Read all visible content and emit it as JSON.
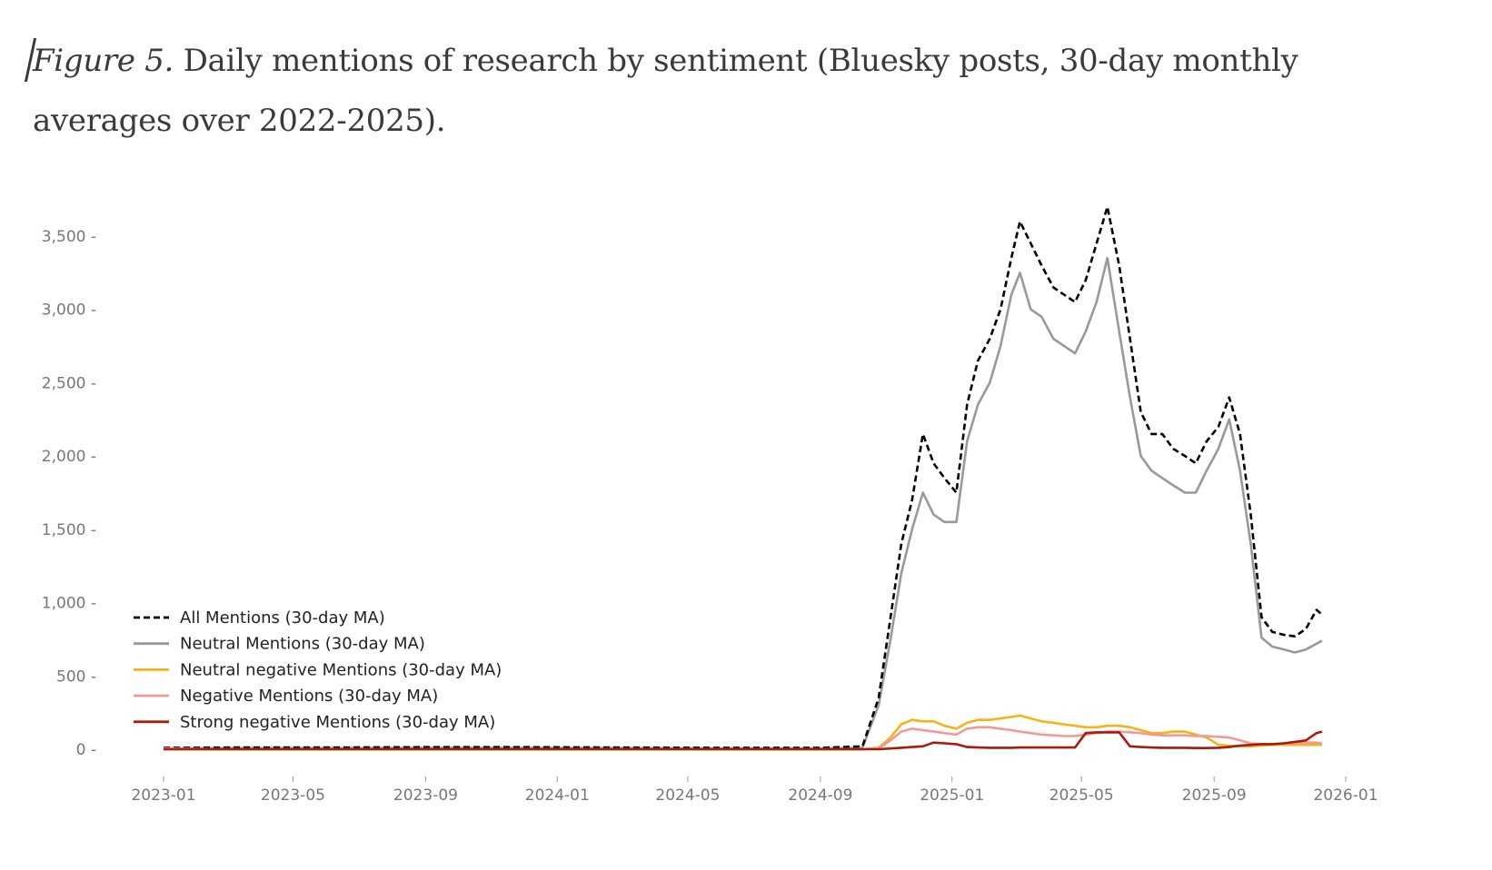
{
  "caption": {
    "figure_label": "Figure 5.",
    "text": " Daily mentions of research by sentiment (Bluesky posts, 30-day monthly averages over 2022-2025)."
  },
  "chart_data": {
    "type": "line",
    "title": "Daily mentions of research by sentiment (Bluesky posts, 30-day monthly averages over 2022-2025)",
    "xlabel": "",
    "ylabel": "",
    "xlim": [
      "2023-01",
      "2026-01"
    ],
    "ylim": [
      0,
      3700
    ],
    "grid": false,
    "legend_position": "lower-left",
    "x_ticks": [
      "2023-01",
      "2023-05",
      "2023-09",
      "2024-01",
      "2024-05",
      "2024-09",
      "2025-01",
      "2025-05",
      "2025-09",
      "2026-01"
    ],
    "y_ticks": [
      0,
      500,
      1000,
      1500,
      2000,
      2500,
      3000,
      3500
    ],
    "y_tick_labels": [
      "0",
      "500",
      "1,000",
      "1,500",
      "2,000",
      "2,500",
      "3,000",
      "3,500"
    ],
    "x": [
      "2023-01-01",
      "2023-03-01",
      "2023-06-01",
      "2023-09-01",
      "2023-12-01",
      "2024-03-01",
      "2024-06-01",
      "2024-09-01",
      "2024-10-10",
      "2024-10-25",
      "2024-11-05",
      "2024-11-15",
      "2024-11-25",
      "2024-12-05",
      "2024-12-15",
      "2024-12-25",
      "2025-01-05",
      "2025-01-15",
      "2025-01-25",
      "2025-02-05",
      "2025-02-15",
      "2025-02-25",
      "2025-03-05",
      "2025-03-15",
      "2025-03-25",
      "2025-04-05",
      "2025-04-15",
      "2025-04-25",
      "2025-05-05",
      "2025-05-15",
      "2025-05-25",
      "2025-06-05",
      "2025-06-15",
      "2025-06-25",
      "2025-07-05",
      "2025-07-15",
      "2025-07-25",
      "2025-08-05",
      "2025-08-15",
      "2025-08-25",
      "2025-09-05",
      "2025-09-15",
      "2025-09-25",
      "2025-10-05",
      "2025-10-15",
      "2025-10-25",
      "2025-11-05",
      "2025-11-15",
      "2025-11-25",
      "2025-12-05",
      "2025-12-10"
    ],
    "series": [
      {
        "name": "All Mentions (30-day MA)",
        "color": "#000000",
        "style": "dashed",
        "values": [
          10,
          12,
          12,
          14,
          14,
          12,
          10,
          10,
          20,
          350,
          900,
          1400,
          1700,
          2150,
          1950,
          1850,
          1750,
          2350,
          2650,
          2800,
          3000,
          3350,
          3600,
          3450,
          3300,
          3150,
          3100,
          3050,
          3200,
          3450,
          3700,
          3300,
          2800,
          2300,
          2150,
          2150,
          2050,
          2000,
          1950,
          2100,
          2200,
          2400,
          2150,
          1600,
          900,
          800,
          780,
          770,
          820,
          950,
          920
        ]
      },
      {
        "name": "Neutral Mentions (30-day MA)",
        "color": "#999999",
        "style": "solid",
        "values": [
          5,
          8,
          8,
          10,
          10,
          8,
          6,
          6,
          10,
          300,
          750,
          1200,
          1500,
          1750,
          1600,
          1550,
          1550,
          2100,
          2350,
          2500,
          2750,
          3100,
          3250,
          3000,
          2950,
          2800,
          2750,
          2700,
          2850,
          3050,
          3350,
          2850,
          2400,
          2000,
          1900,
          1850,
          1800,
          1750,
          1750,
          1900,
          2050,
          2250,
          1900,
          1400,
          760,
          700,
          680,
          660,
          680,
          720,
          740
        ]
      },
      {
        "name": "Neutral negative Mentions (30-day MA)",
        "color": "#f5b21b",
        "style": "solid",
        "values": [
          0,
          0,
          0,
          0,
          0,
          0,
          0,
          0,
          0,
          10,
          80,
          170,
          200,
          190,
          190,
          160,
          140,
          180,
          200,
          200,
          210,
          220,
          230,
          210,
          190,
          180,
          170,
          160,
          150,
          150,
          160,
          160,
          150,
          130,
          110,
          110,
          120,
          120,
          100,
          80,
          30,
          25,
          20,
          20,
          25,
          30,
          30,
          30,
          30,
          30,
          30
        ]
      },
      {
        "name": "Negative Mentions (30-day MA)",
        "color": "#f19a96",
        "style": "solid",
        "values": [
          5,
          0,
          0,
          0,
          0,
          0,
          0,
          0,
          0,
          5,
          60,
          120,
          140,
          130,
          120,
          110,
          100,
          140,
          150,
          150,
          140,
          130,
          120,
          110,
          100,
          95,
          90,
          90,
          100,
          110,
          120,
          120,
          115,
          110,
          100,
          95,
          95,
          95,
          90,
          90,
          85,
          80,
          60,
          40,
          35,
          35,
          40,
          40,
          45,
          45,
          40
        ]
      },
      {
        "name": "Strong negative Mentions (30-day MA)",
        "color": "#a51c0e",
        "style": "solid",
        "values": [
          0,
          0,
          0,
          0,
          0,
          0,
          0,
          0,
          0,
          0,
          5,
          10,
          15,
          20,
          45,
          40,
          35,
          15,
          12,
          10,
          10,
          10,
          12,
          12,
          12,
          12,
          12,
          12,
          110,
          115,
          115,
          115,
          20,
          15,
          12,
          10,
          10,
          10,
          8,
          8,
          10,
          15,
          25,
          30,
          35,
          35,
          40,
          50,
          60,
          110,
          120
        ]
      }
    ]
  }
}
